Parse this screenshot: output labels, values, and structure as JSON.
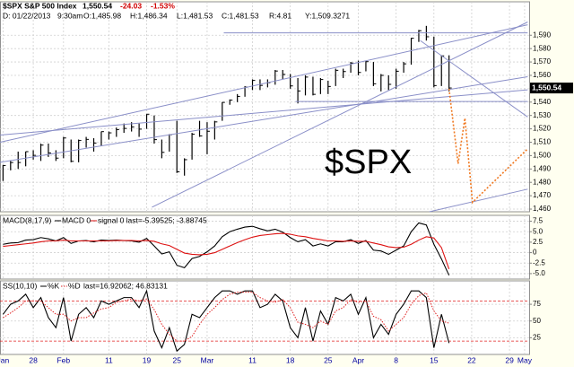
{
  "chart_data": [
    {
      "type": "ohlc",
      "title": "$SPX S&P 500 Index",
      "last": "1,550.54",
      "change": "-24.03",
      "change_pct": "-1.53%",
      "info": [
        "D: 01/22/2013",
        "9:30am",
        "O:1,485.98",
        "H:1,486.34",
        "L:1,481.53",
        "C:1,481.53",
        "R:4.81",
        "Y:1,509.3271"
      ],
      "annotation": "$SPX",
      "color": "#000000",
      "high": [
        1493,
        1496,
        1503,
        1503,
        1504,
        1509,
        1509,
        1504,
        1514,
        1512,
        1512,
        1514,
        1513,
        1518,
        1518,
        1521,
        1524,
        1525,
        1524,
        1531,
        1530,
        1512,
        1516,
        1526,
        1498,
        1517,
        1526,
        1525,
        1526,
        1540,
        1542,
        1546,
        1552,
        1557,
        1557,
        1557,
        1564,
        1564,
        1561,
        1558,
        1560,
        1559,
        1558,
        1556,
        1565,
        1565,
        1570,
        1571,
        1571,
        1570,
        1561,
        1560,
        1565,
        1570,
        1588,
        1594,
        1597,
        1589,
        1575,
        1575,
        null,
        null,
        null,
        null,
        null,
        null,
        null,
        null,
        null,
        null
      ],
      "low": [
        1481,
        1489,
        1490,
        1492,
        1497,
        1496,
        1499,
        1496,
        1498,
        1495,
        1495,
        1506,
        1503,
        1507,
        1512,
        1514,
        1517,
        1518,
        1514,
        1520,
        1509,
        1498,
        1503,
        1487,
        1485,
        1497,
        1514,
        1501,
        1512,
        1526,
        1538,
        1540,
        1544,
        1549,
        1549,
        1551,
        1553,
        1557,
        1550,
        1539,
        1545,
        1545,
        1546,
        1546,
        1552,
        1558,
        1562,
        1560,
        1563,
        1552,
        1548,
        1549,
        1550,
        1562,
        1568,
        1585,
        1586,
        1551,
        1552,
        1548,
        null,
        null,
        null,
        null,
        null,
        null,
        null,
        null,
        null,
        null
      ],
      "close": [
        1492.56,
        1494.81,
        1494.82,
        1502.96,
        1500.18,
        1507.84,
        1501.96,
        1498.11,
        1513.17,
        1495.71,
        1511.29,
        1512.12,
        1509.39,
        1517.93,
        1517.01,
        1519.43,
        1520.33,
        1521.38,
        1519.79,
        1530.94,
        1511.95,
        1502.42,
        1515.6,
        1487.85,
        1496.94,
        1515.99,
        1514.68,
        1518.2,
        1525.2,
        1539.79,
        1541.46,
        1544.26,
        1551.18,
        1556.22,
        1552.48,
        1554.52,
        1563.23,
        1560.7,
        1552.1,
        1548.34,
        1558.71,
        1545.8,
        1556.89,
        1551.69,
        1563.77,
        1562.85,
        1569.19,
        1562.17,
        1570.25,
        1553.69,
        1559.98,
        1553.28,
        1563.07,
        1568.61,
        1587.73,
        1593.37,
        1588.85,
        1552.36,
        1574.57,
        1550.54,
        null,
        null,
        null,
        null,
        null,
        null,
        null,
        null,
        null,
        null
      ],
      "last_value": {
        "value": 1550.54,
        "label": "1,550.54"
      },
      "projection": {
        "color": "#f07820",
        "x": [
          59,
          60.2,
          61.1,
          62.1,
          69.4
        ],
        "values": [
          1550,
          1494,
          1528,
          1465,
          1505
        ]
      },
      "trendlines": {
        "color": "#8a8fc8",
        "lines": [
          {
            "x": [
              -0.4,
              69.4
            ],
            "y": [
              1510,
              1597.8
            ]
          },
          {
            "x": [
              -0.4,
              69.4
            ],
            "y": [
              1495,
              1559
            ]
          },
          {
            "x": [
              -0.4,
              69.4
            ],
            "y": [
              1515.4,
              1549.2
            ]
          },
          {
            "x": [
              19.7,
              69.4
            ],
            "y": [
              1461.4,
              1599.9
            ]
          },
          {
            "x": [
              29.2,
              69.4
            ],
            "y": [
              1591.8,
              1591.8
            ]
          },
          {
            "x": [
              55.2,
              69.4
            ],
            "y": [
              1586,
              1528.9
            ]
          },
          {
            "x": [
              56.4,
              69.4
            ],
            "y": [
              1458,
              1474.9
            ]
          },
          {
            "x": [
              38.7,
              69.4
            ],
            "y": [
              1540.4,
              1540.4
            ]
          }
        ]
      },
      "ylim": [
        1458,
        1615
      ],
      "yticks": [
        {
          "value": 1460,
          "label": "1,460"
        },
        {
          "value": 1470,
          "label": "1,470"
        },
        {
          "value": 1480,
          "label": "1,480"
        },
        {
          "value": 1490,
          "label": "1,490"
        },
        {
          "value": 1500,
          "label": "1,500"
        },
        {
          "value": 1510,
          "label": "1,510"
        },
        {
          "value": 1520,
          "label": "1,520"
        },
        {
          "value": 1530,
          "label": "1,530"
        },
        {
          "value": 1540,
          "label": "1,540"
        },
        {
          "value": 1550,
          "label": "1,550"
        },
        {
          "value": 1560,
          "label": "1,560"
        },
        {
          "value": 1570,
          "label": "1,570"
        },
        {
          "value": 1580,
          "label": "1,580"
        },
        {
          "value": 1590,
          "label": "1,590"
        }
      ],
      "grid": true
    },
    {
      "type": "line",
      "title": "MACD(8,17,9)",
      "legend_note": "signal 0 last=-5.39525; -3.88745",
      "series": [
        {
          "name": "MACD 0",
          "color": "#000000",
          "values": [
            2.0,
            2.3,
            2.4,
            3.0,
            3.1,
            3.6,
            3.3,
            2.8,
            3.6,
            2.2,
            2.8,
            2.9,
            2.6,
            3.0,
            2.9,
            3.0,
            2.9,
            2.8,
            2.5,
            3.4,
            1.6,
            -0.3,
            0.2,
            -3.0,
            -3.6,
            -1.4,
            -0.9,
            0.2,
            1.6,
            3.8,
            5.0,
            5.6,
            6.1,
            6.3,
            5.7,
            5.2,
            5.6,
            4.9,
            3.6,
            2.6,
            3.1,
            1.6,
            2.1,
            1.6,
            2.6,
            2.6,
            3.1,
            2.2,
            2.9,
            0.6,
            0.4,
            -0.4,
            0.6,
            1.6,
            5.0,
            7.1,
            6.6,
            2.0,
            -1.5,
            -5.4,
            null,
            null,
            null,
            null,
            null,
            null,
            null,
            null,
            null,
            null
          ]
        },
        {
          "name": "signal",
          "color": "#dd1111",
          "values": [
            1.5,
            1.7,
            1.9,
            2.1,
            2.3,
            2.6,
            2.8,
            2.8,
            3.0,
            2.8,
            2.8,
            2.8,
            2.8,
            2.8,
            2.8,
            2.9,
            2.9,
            2.9,
            2.8,
            2.9,
            2.7,
            2.1,
            1.7,
            0.8,
            -0.1,
            -0.4,
            -0.5,
            -0.4,
            0.0,
            0.8,
            1.6,
            2.4,
            3.1,
            3.7,
            4.1,
            4.3,
            4.5,
            4.6,
            4.4,
            4.0,
            3.8,
            3.4,
            3.1,
            2.8,
            2.8,
            2.7,
            2.8,
            2.7,
            2.7,
            2.3,
            1.9,
            1.4,
            1.2,
            1.3,
            2.0,
            3.0,
            3.8,
            3.5,
            1.2,
            -3.9,
            null,
            null,
            null,
            null,
            null,
            null,
            null,
            null,
            null,
            null
          ]
        }
      ],
      "ylim": [
        -6.3,
        8.9
      ],
      "yticks": [
        7.5,
        {
          "value": 5,
          "label": "5.0"
        },
        2.5,
        0,
        -2.5,
        {
          "value": -5,
          "label": "-5.0"
        }
      ],
      "grid": true
    },
    {
      "type": "line",
      "title": "SS(10,10)",
      "legend_note": "last=16.92062; 46.83131",
      "series": [
        {
          "name": "%K",
          "color": "#000000",
          "dash": false,
          "values": [
            60,
            75,
            80,
            90,
            70,
            85,
            55,
            40,
            85,
            20,
            60,
            70,
            55,
            80,
            75,
            80,
            85,
            85,
            70,
            95,
            35,
            10,
            40,
            5,
            15,
            60,
            55,
            70,
            85,
            95,
            95,
            90,
            95,
            95,
            70,
            75,
            90,
            80,
            40,
            25,
            70,
            20,
            65,
            45,
            85,
            80,
            90,
            60,
            85,
            25,
            45,
            30,
            60,
            75,
            95,
            95,
            85,
            10,
            60,
            17,
            null,
            null,
            null,
            null,
            null,
            null,
            null,
            null,
            null,
            null
          ]
        },
        {
          "name": "%D",
          "color": "#e02020",
          "dash": true,
          "values": [
            55,
            62,
            70,
            80,
            80,
            80,
            70,
            60,
            60,
            50,
            55,
            55,
            62,
            68,
            70,
            78,
            80,
            83,
            80,
            83,
            67,
            45,
            30,
            20,
            20,
            27,
            45,
            60,
            70,
            82,
            90,
            93,
            93,
            93,
            85,
            80,
            78,
            82,
            70,
            48,
            45,
            40,
            50,
            45,
            65,
            70,
            82,
            78,
            80,
            57,
            52,
            35,
            45,
            55,
            75,
            88,
            92,
            65,
            50,
            46.8,
            null,
            null,
            null,
            null,
            null,
            null,
            null,
            null,
            null,
            null
          ]
        }
      ],
      "levels": [
        80,
        20
      ],
      "ylim": [
        0,
        110
      ],
      "yticks": [
        75,
        50,
        25
      ],
      "grid": true,
      "categories": [
        "Jan",
        null,
        null,
        null,
        "28",
        null,
        null,
        null,
        "Feb",
        null,
        null,
        null,
        null,
        null,
        "11",
        null,
        null,
        null,
        null,
        "19",
        null,
        null,
        null,
        "25",
        null,
        null,
        null,
        "Mar",
        null,
        null,
        null,
        null,
        null,
        "11",
        null,
        null,
        null,
        null,
        "18",
        null,
        null,
        null,
        null,
        "25",
        null,
        null,
        null,
        "Apr",
        null,
        null,
        null,
        null,
        "8",
        null,
        null,
        null,
        null,
        "15",
        null,
        null,
        null,
        null,
        "22",
        null,
        null,
        null,
        null,
        "29",
        null,
        "May"
      ]
    }
  ]
}
